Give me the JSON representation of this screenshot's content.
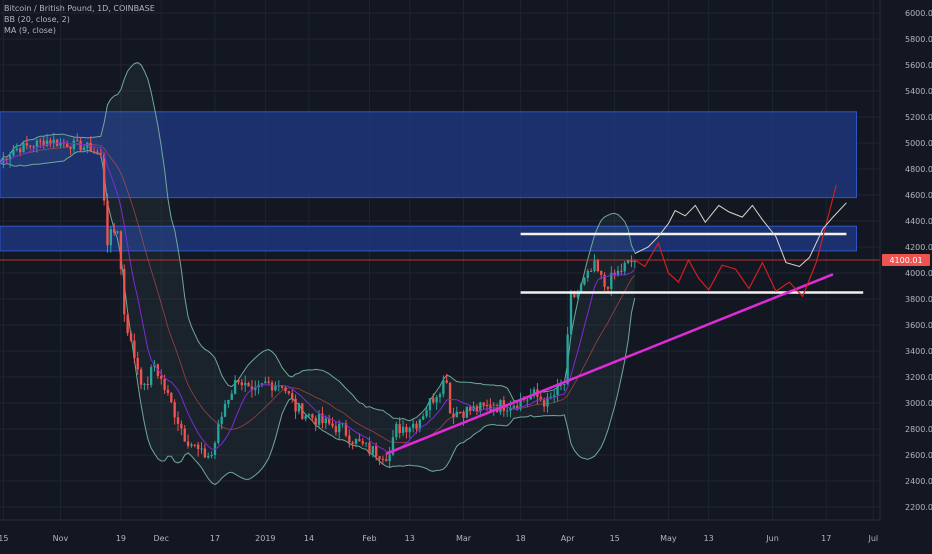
{
  "header": {
    "symbol": "Bitcoin / British Pound, 1D, COINBASE",
    "indicators": [
      "BB (20, close, 2)",
      "MA (9, close)"
    ]
  },
  "colors": {
    "background": "#131722",
    "grid": "#1f2433",
    "up": "#26a69a",
    "down": "#ef5350",
    "zone": "#1e3a8a",
    "white_line": "#f2f2ee",
    "trendline": "#e02bd6",
    "bb": "#6fa898",
    "ma": "#7e2ad6",
    "price_line": "#e53935",
    "price_badge": "#ef5350"
  },
  "chart_data": {
    "type": "candlestick",
    "title": "Bitcoin / British Pound, 1D, COINBASE",
    "ylim": [
      2100,
      6100
    ],
    "y_ticks": [
      2200,
      2400,
      2600,
      2800,
      3000,
      3200,
      3400,
      3600,
      3800,
      4000,
      4200,
      4400,
      4600,
      4800,
      5000,
      5200,
      5400,
      5600,
      5800,
      6000
    ],
    "y_tick_labels": [
      "2200.00",
      "2400.00",
      "2600.00",
      "2800.00",
      "3000.00",
      "3200.00",
      "3400.00",
      "3600.00",
      "3800.00",
      "4000.00",
      "4200.00",
      "4400.00",
      "4600.00",
      "4800.00",
      "5000.00",
      "5200.00",
      "5400.00",
      "5600.00",
      "5800.00",
      "6000.00"
    ],
    "x_start": "2018-10-14",
    "x_end": "2019-07-03",
    "x_ticks": [
      {
        "date": "2018-10-15",
        "label": "15"
      },
      {
        "date": "2018-11-01",
        "label": "Nov"
      },
      {
        "date": "2018-11-19",
        "label": "19"
      },
      {
        "date": "2018-12-01",
        "label": "Dec"
      },
      {
        "date": "2018-12-17",
        "label": "17"
      },
      {
        "date": "2019-01-01",
        "label": "2019"
      },
      {
        "date": "2019-01-14",
        "label": "14"
      },
      {
        "date": "2019-02-01",
        "label": "Feb"
      },
      {
        "date": "2019-02-13",
        "label": "13"
      },
      {
        "date": "2019-03-01",
        "label": "Mar"
      },
      {
        "date": "2019-03-18",
        "label": "18"
      },
      {
        "date": "2019-04-01",
        "label": "Apr"
      },
      {
        "date": "2019-04-15",
        "label": "15"
      },
      {
        "date": "2019-05-01",
        "label": "May"
      },
      {
        "date": "2019-05-13",
        "label": "13"
      },
      {
        "date": "2019-06-01",
        "label": "Jun"
      },
      {
        "date": "2019-06-17",
        "label": "17"
      },
      {
        "date": "2019-07-01",
        "label": "Jul"
      }
    ],
    "last_price": 4100.01,
    "last_price_label": "4100.01",
    "price_anchors": [
      [
        "2018-10-14",
        4850
      ],
      [
        "2018-10-18",
        4950
      ],
      [
        "2018-10-23",
        4980
      ],
      [
        "2018-10-28",
        5020
      ],
      [
        "2018-11-04",
        4990
      ],
      [
        "2018-11-10",
        4960
      ],
      [
        "2018-11-13",
        4900
      ],
      [
        "2018-11-15",
        4250
      ],
      [
        "2018-11-18",
        4350
      ],
      [
        "2018-11-20",
        3700
      ],
      [
        "2018-11-22",
        3450
      ],
      [
        "2018-11-26",
        3100
      ],
      [
        "2018-11-29",
        3300
      ],
      [
        "2018-12-03",
        3050
      ],
      [
        "2018-12-08",
        2750
      ],
      [
        "2018-12-13",
        2600
      ],
      [
        "2018-12-16",
        2600
      ],
      [
        "2018-12-20",
        3000
      ],
      [
        "2018-12-24",
        3200
      ],
      [
        "2018-12-28",
        3050
      ],
      [
        "2019-01-01",
        3150
      ],
      [
        "2019-01-06",
        3150
      ],
      [
        "2019-01-10",
        2960
      ],
      [
        "2019-01-18",
        2850
      ],
      [
        "2019-01-24",
        2800
      ],
      [
        "2019-01-28",
        2700
      ],
      [
        "2019-02-01",
        2640
      ],
      [
        "2019-02-07",
        2600
      ],
      [
        "2019-02-09",
        2800
      ],
      [
        "2019-02-15",
        2850
      ],
      [
        "2019-02-24",
        3200
      ],
      [
        "2019-02-25",
        2930
      ],
      [
        "2019-03-01",
        2940
      ],
      [
        "2019-03-10",
        2970
      ],
      [
        "2019-03-16",
        3000
      ],
      [
        "2019-03-22",
        3060
      ],
      [
        "2019-03-26",
        3000
      ],
      [
        "2019-03-31",
        3150
      ],
      [
        "2019-04-02",
        3800
      ],
      [
        "2019-04-04",
        3850
      ],
      [
        "2019-04-09",
        4050
      ],
      [
        "2019-04-12",
        3900
      ],
      [
        "2019-04-18",
        4050
      ],
      [
        "2019-04-21",
        4100
      ]
    ],
    "zones": [
      {
        "from": "2018-10-14",
        "to": "2019-06-26",
        "low": 4580,
        "high": 5240
      },
      {
        "from": "2018-10-14",
        "to": "2019-06-26",
        "low": 4170,
        "high": 4360
      }
    ],
    "horizontal_lines": [
      {
        "from": "2019-03-18",
        "to": "2019-06-23",
        "value": 4300
      },
      {
        "from": "2019-03-18",
        "to": "2019-06-28",
        "value": 3850
      }
    ],
    "trendline": {
      "from": [
        "2019-02-06",
        2610
      ],
      "to": [
        "2019-06-19",
        3990
      ]
    },
    "projection_red": [
      [
        "2019-04-21",
        4100
      ],
      [
        "2019-04-24",
        4050
      ],
      [
        "2019-04-28",
        4230
      ],
      [
        "2019-05-01",
        4000
      ],
      [
        "2019-05-04",
        3930
      ],
      [
        "2019-05-07",
        4100
      ],
      [
        "2019-05-10",
        3960
      ],
      [
        "2019-05-13",
        3870
      ],
      [
        "2019-05-17",
        4060
      ],
      [
        "2019-05-21",
        4030
      ],
      [
        "2019-05-25",
        3880
      ],
      [
        "2019-05-29",
        4080
      ],
      [
        "2019-06-02",
        3860
      ],
      [
        "2019-06-06",
        3930
      ],
      [
        "2019-06-10",
        3820
      ],
      [
        "2019-06-14",
        4080
      ],
      [
        "2019-06-17",
        4380
      ],
      [
        "2019-06-20",
        4680
      ]
    ],
    "projection_white": [
      [
        "2019-04-21",
        4150
      ],
      [
        "2019-04-25",
        4200
      ],
      [
        "2019-04-28",
        4280
      ],
      [
        "2019-05-01",
        4380
      ],
      [
        "2019-05-03",
        4480
      ],
      [
        "2019-05-06",
        4440
      ],
      [
        "2019-05-09",
        4520
      ],
      [
        "2019-05-12",
        4390
      ],
      [
        "2019-05-16",
        4520
      ],
      [
        "2019-05-19",
        4470
      ],
      [
        "2019-05-23",
        4430
      ],
      [
        "2019-05-26",
        4520
      ],
      [
        "2019-05-29",
        4410
      ],
      [
        "2019-06-02",
        4280
      ],
      [
        "2019-06-05",
        4080
      ],
      [
        "2019-06-09",
        4050
      ],
      [
        "2019-06-12",
        4120
      ],
      [
        "2019-06-16",
        4340
      ],
      [
        "2019-06-19",
        4430
      ],
      [
        "2019-06-23",
        4540
      ]
    ]
  }
}
